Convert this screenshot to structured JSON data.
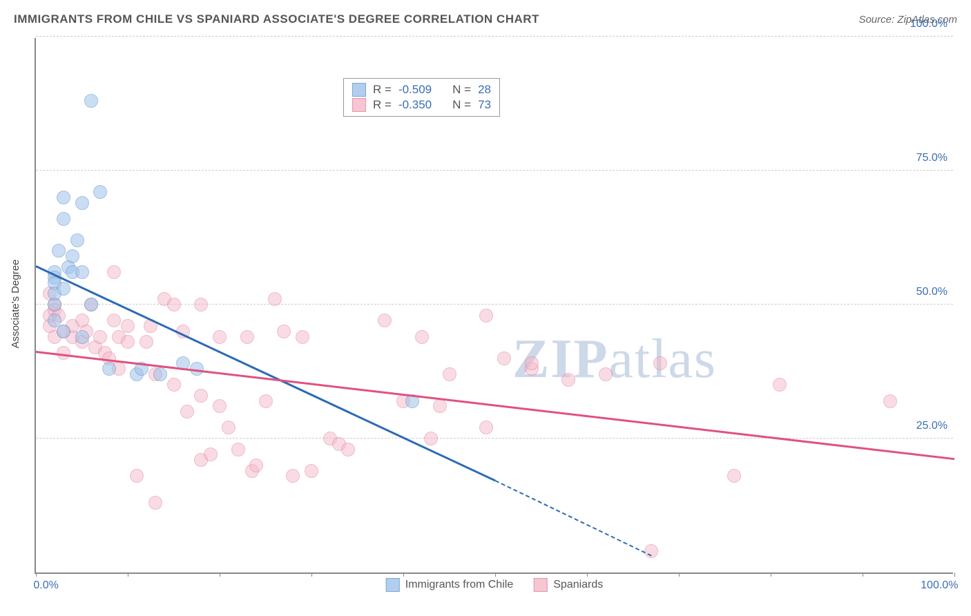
{
  "title": "IMMIGRANTS FROM CHILE VS SPANIARD ASSOCIATE'S DEGREE CORRELATION CHART",
  "source": "Source: ZipAtlas.com",
  "y_axis_label": "Associate's Degree",
  "watermark_bold": "ZIP",
  "watermark_rest": "atlas",
  "xlim": [
    0,
    100
  ],
  "ylim": [
    0,
    100
  ],
  "ytick_step": 25,
  "yticks": [
    {
      "v": 25,
      "label": "25.0%"
    },
    {
      "v": 50,
      "label": "50.0%"
    },
    {
      "v": 75,
      "label": "75.0%"
    },
    {
      "v": 100,
      "label": "100.0%"
    }
  ],
  "xticks": [
    0,
    10,
    20,
    30,
    40,
    50,
    60,
    70,
    80,
    90,
    100
  ],
  "xtick_labels": {
    "0": "0.0%",
    "100": "100.0%"
  },
  "grid_color": "#cccccc",
  "axis_color": "#888888",
  "tick_label_color": "#3b6db5",
  "series": [
    {
      "name": "Immigrants from Chile",
      "fill_color": "#9fc3ea",
      "stroke_color": "#5d8fc9",
      "fill_opacity": 0.55,
      "marker_radius": 10,
      "R": "-0.509",
      "N": "28",
      "trend": {
        "x1": 0,
        "y1": 57,
        "x2": 50,
        "y2": 17,
        "solid_end_x": 50,
        "dash_end_x": 67,
        "dash_end_y": 3,
        "color": "#2c6bb3"
      },
      "points": [
        [
          2,
          56
        ],
        [
          2,
          55
        ],
        [
          2,
          54
        ],
        [
          2,
          50
        ],
        [
          2,
          47
        ],
        [
          2,
          52
        ],
        [
          2.5,
          60
        ],
        [
          3,
          53
        ],
        [
          3,
          66
        ],
        [
          3,
          70
        ],
        [
          3.5,
          57
        ],
        [
          4,
          56
        ],
        [
          4,
          59
        ],
        [
          4.5,
          62
        ],
        [
          5,
          69
        ],
        [
          5,
          56
        ],
        [
          6,
          88
        ],
        [
          7,
          71
        ],
        [
          3,
          45
        ],
        [
          5,
          44
        ],
        [
          6,
          50
        ],
        [
          8,
          38
        ],
        [
          11,
          37
        ],
        [
          11.5,
          38
        ],
        [
          13.5,
          37
        ],
        [
          16,
          39
        ],
        [
          17.5,
          38
        ],
        [
          41,
          32
        ]
      ]
    },
    {
      "name": "Spaniards",
      "fill_color": "#f4b8c8",
      "stroke_color": "#e07a9a",
      "fill_opacity": 0.5,
      "marker_radius": 10,
      "R": "-0.350",
      "N": "73",
      "trend": {
        "x1": 0,
        "y1": 41,
        "x2": 100,
        "y2": 21,
        "solid_end_x": 100,
        "color": "#e0517e"
      },
      "points": [
        [
          1.5,
          48
        ],
        [
          1.5,
          46
        ],
        [
          1.5,
          52
        ],
        [
          2,
          50
        ],
        [
          2,
          49
        ],
        [
          2,
          44
        ],
        [
          2.5,
          48
        ],
        [
          3,
          45
        ],
        [
          3,
          41
        ],
        [
          4,
          44
        ],
        [
          4,
          46
        ],
        [
          5,
          43
        ],
        [
          5,
          47
        ],
        [
          5.5,
          45
        ],
        [
          6,
          50
        ],
        [
          6.5,
          42
        ],
        [
          7,
          44
        ],
        [
          7.5,
          41
        ],
        [
          8,
          40
        ],
        [
          8.5,
          47
        ],
        [
          8.5,
          56
        ],
        [
          9,
          44
        ],
        [
          9,
          38
        ],
        [
          10,
          46
        ],
        [
          10,
          43
        ],
        [
          11,
          18
        ],
        [
          12,
          43
        ],
        [
          12.5,
          46
        ],
        [
          13,
          13
        ],
        [
          13,
          37
        ],
        [
          14,
          51
        ],
        [
          15,
          50
        ],
        [
          15,
          35
        ],
        [
          16,
          45
        ],
        [
          16.5,
          30
        ],
        [
          18,
          50
        ],
        [
          18,
          33
        ],
        [
          18,
          21
        ],
        [
          19,
          22
        ],
        [
          20,
          44
        ],
        [
          20,
          31
        ],
        [
          21,
          27
        ],
        [
          22,
          23
        ],
        [
          23,
          44
        ],
        [
          23.5,
          19
        ],
        [
          24,
          20
        ],
        [
          25,
          32
        ],
        [
          26,
          51
        ],
        [
          27,
          45
        ],
        [
          28,
          18
        ],
        [
          29,
          44
        ],
        [
          30,
          19
        ],
        [
          32,
          25
        ],
        [
          33,
          24
        ],
        [
          34,
          23
        ],
        [
          38,
          47
        ],
        [
          40,
          32
        ],
        [
          42,
          44
        ],
        [
          43,
          25
        ],
        [
          44,
          31
        ],
        [
          45,
          37
        ],
        [
          49,
          48
        ],
        [
          49,
          27
        ],
        [
          51,
          40
        ],
        [
          54,
          38
        ],
        [
          54,
          39
        ],
        [
          58,
          36
        ],
        [
          62,
          37
        ],
        [
          67,
          4
        ],
        [
          76,
          18
        ],
        [
          81,
          35
        ],
        [
          93,
          32
        ],
        [
          68,
          39
        ]
      ]
    }
  ],
  "stats_legend": {
    "R_label": "R =",
    "N_label": "N ="
  }
}
